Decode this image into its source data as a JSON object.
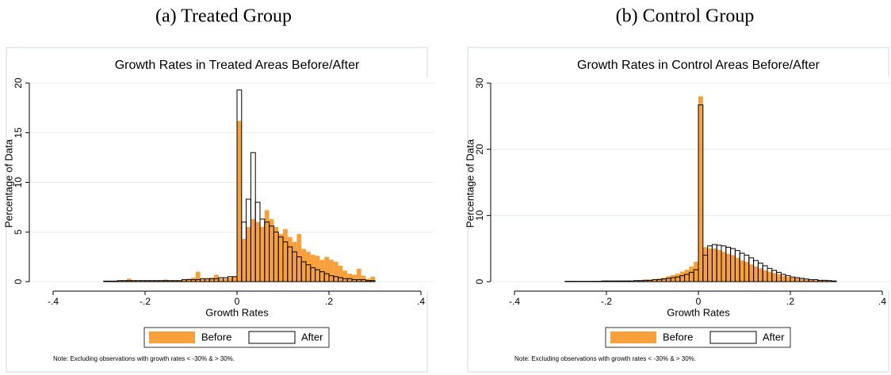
{
  "chart_data": [
    {
      "type": "histogram",
      "caption": "(a) Treated Group",
      "title": "Growth Rates in Treated Areas Before/After",
      "x_label": "Growth Rates",
      "y_label": "Percentage of Data",
      "note": "Note: Excluding observations with growth rates < -30% & > 30%.",
      "xlim": [
        -0.4,
        0.4
      ],
      "ylim": [
        0,
        20
      ],
      "xticks": [
        {
          "value": -0.4,
          "label": "-.4"
        },
        {
          "value": -0.2,
          "label": "-.2"
        },
        0,
        {
          "value": 0.2,
          "label": ".2"
        },
        {
          "value": 0.4,
          "label": ".4"
        }
      ],
      "yticks": [
        0,
        5,
        10,
        15,
        20
      ],
      "grid": true,
      "bins": [
        -0.29,
        -0.28,
        -0.27,
        -0.26,
        -0.25,
        -0.24,
        -0.23,
        -0.22,
        -0.21,
        -0.2,
        -0.19,
        -0.18,
        -0.17,
        -0.16,
        -0.15,
        -0.14,
        -0.13,
        -0.12,
        -0.11,
        -0.1,
        -0.09,
        -0.08,
        -0.07,
        -0.06,
        -0.05,
        -0.04,
        -0.03,
        -0.02,
        -0.01,
        0,
        0.01,
        0.02,
        0.03,
        0.04,
        0.05,
        0.06,
        0.07,
        0.08,
        0.09,
        0.1,
        0.11,
        0.12,
        0.13,
        0.14,
        0.15,
        0.16,
        0.17,
        0.18,
        0.19,
        0.2,
        0.21,
        0.22,
        0.23,
        0.24,
        0.25,
        0.26,
        0.27,
        0.28,
        0.29,
        0.3
      ],
      "series": [
        {
          "name": "Before",
          "color": "#f7a03c",
          "values": [
            0.1,
            0.1,
            0.1,
            0.1,
            0.1,
            0.3,
            0.1,
            0.1,
            0.1,
            0.1,
            0.1,
            0.1,
            0.1,
            0.2,
            0.1,
            0.1,
            0.1,
            0.2,
            0.3,
            0.4,
            1.0,
            0.3,
            0.3,
            0.4,
            0.7,
            0.3,
            0.3,
            0.4,
            0.5,
            16.2,
            4.3,
            5.5,
            6.3,
            6.0,
            5.5,
            7.2,
            6.3,
            5.5,
            4.8,
            5.3,
            4.5,
            4.0,
            4.8,
            3.3,
            3.0,
            2.7,
            2.6,
            2.2,
            2.5,
            2.2,
            2.0,
            1.6,
            1.1,
            0.8,
            0.7,
            1.3,
            0.6,
            0.3,
            0.5
          ]
        },
        {
          "name": "After",
          "color": "#000000",
          "values": [
            0.05,
            0.05,
            0.05,
            0.1,
            0.1,
            0.1,
            0.1,
            0.1,
            0.1,
            0.1,
            0.1,
            0.1,
            0.1,
            0.1,
            0.1,
            0.1,
            0.1,
            0.2,
            0.2,
            0.2,
            0.2,
            0.3,
            0.3,
            0.3,
            0.3,
            0.4,
            0.4,
            0.5,
            0.5,
            19.3,
            6.0,
            8.3,
            13.0,
            8.0,
            6.3,
            6.0,
            5.6,
            5.0,
            4.5,
            4.0,
            3.5,
            3.0,
            2.5,
            2.0,
            1.7,
            1.4,
            1.2,
            1.0,
            0.8,
            0.6,
            0.5,
            0.4,
            0.3,
            0.3,
            0.2,
            0.2,
            0.2,
            0.1,
            0.1
          ]
        }
      ]
    },
    {
      "type": "histogram",
      "caption": "(b) Control Group",
      "title": "Growth Rates in Control Areas Before/After",
      "x_label": "Growth Rates",
      "y_label": "Percentage of Data",
      "note": "Note: Excluding observations with growth rates < -30% & > 30%.",
      "xlim": [
        -0.4,
        0.4
      ],
      "ylim": [
        0,
        30
      ],
      "xticks": [
        {
          "value": -0.4,
          "label": "-.4"
        },
        {
          "value": -0.2,
          "label": "-.2"
        },
        0,
        {
          "value": 0.2,
          "label": ".2"
        },
        {
          "value": 0.4,
          "label": ".4"
        }
      ],
      "yticks": [
        0,
        10,
        20,
        30
      ],
      "grid": true,
      "bins": [
        -0.29,
        -0.28,
        -0.27,
        -0.26,
        -0.25,
        -0.24,
        -0.23,
        -0.22,
        -0.21,
        -0.2,
        -0.19,
        -0.18,
        -0.17,
        -0.16,
        -0.15,
        -0.14,
        -0.13,
        -0.12,
        -0.11,
        -0.1,
        -0.09,
        -0.08,
        -0.07,
        -0.06,
        -0.05,
        -0.04,
        -0.03,
        -0.02,
        -0.01,
        0,
        0.01,
        0.02,
        0.03,
        0.04,
        0.05,
        0.06,
        0.07,
        0.08,
        0.09,
        0.1,
        0.11,
        0.12,
        0.13,
        0.14,
        0.15,
        0.16,
        0.17,
        0.18,
        0.19,
        0.2,
        0.21,
        0.22,
        0.23,
        0.24,
        0.25,
        0.26,
        0.27,
        0.28,
        0.29,
        0.3
      ],
      "series": [
        {
          "name": "Before",
          "color": "#f7a03c",
          "values": [
            0.05,
            0.05,
            0.05,
            0.05,
            0.05,
            0.05,
            0.05,
            0.1,
            0.1,
            0.1,
            0.1,
            0.1,
            0.1,
            0.15,
            0.15,
            0.2,
            0.2,
            0.3,
            0.3,
            0.4,
            0.5,
            0.6,
            0.8,
            1.0,
            1.2,
            1.5,
            1.8,
            2.3,
            3.0,
            28,
            5.2,
            5.0,
            5.0,
            4.8,
            4.5,
            4.2,
            4.0,
            3.6,
            3.2,
            3.0,
            2.6,
            2.3,
            2.0,
            1.7,
            1.5,
            1.3,
            1.1,
            0.9,
            0.7,
            0.6,
            0.5,
            0.4,
            0.3,
            0.3,
            0.2,
            0.2,
            0.15,
            0.1,
            0.1
          ]
        },
        {
          "name": "After",
          "color": "#000000",
          "values": [
            0.05,
            0.05,
            0.05,
            0.05,
            0.05,
            0.05,
            0.05,
            0.05,
            0.1,
            0.1,
            0.1,
            0.1,
            0.1,
            0.1,
            0.1,
            0.15,
            0.15,
            0.2,
            0.2,
            0.3,
            0.3,
            0.4,
            0.5,
            0.6,
            0.7,
            0.9,
            1.1,
            1.4,
            1.8,
            26.7,
            4.0,
            5.4,
            5.6,
            5.5,
            5.4,
            5.2,
            5.0,
            4.7,
            4.3,
            4.0,
            3.6,
            3.2,
            2.8,
            2.4,
            2.0,
            1.7,
            1.4,
            1.1,
            0.9,
            0.7,
            0.6,
            0.5,
            0.4,
            0.3,
            0.3,
            0.2,
            0.2,
            0.15,
            0.1
          ]
        }
      ]
    }
  ]
}
